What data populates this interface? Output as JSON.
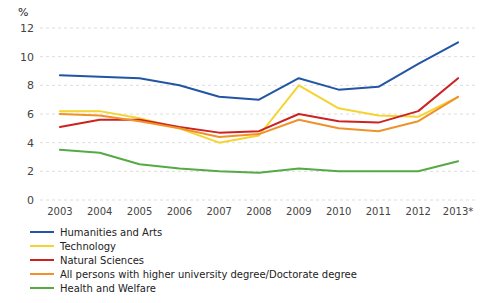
{
  "chart_data": {
    "type": "line",
    "y_label": "%",
    "categories": [
      "2003",
      "2004",
      "2005",
      "2006",
      "2007",
      "2008",
      "2009",
      "2010",
      "2011",
      "2012",
      "2013*"
    ],
    "series": [
      {
        "name": "Humanities and Arts",
        "color": "#2255a4",
        "values": [
          8.7,
          8.6,
          8.5,
          8.0,
          7.2,
          7.0,
          8.5,
          7.7,
          7.9,
          9.5,
          11.0
        ]
      },
      {
        "name": "Technology",
        "color": "#f5d330",
        "values": [
          6.2,
          6.2,
          5.7,
          5.0,
          4.0,
          4.5,
          8.0,
          6.4,
          5.9,
          5.8,
          7.2
        ]
      },
      {
        "name": "Natural Sciences",
        "color": "#cc2222",
        "values": [
          5.1,
          5.6,
          5.6,
          5.1,
          4.7,
          4.8,
          6.0,
          5.5,
          5.4,
          6.2,
          8.5
        ]
      },
      {
        "name": "All persons with higher university degree/Doctorate degree",
        "color": "#f0922b",
        "values": [
          6.0,
          5.9,
          5.5,
          5.0,
          4.4,
          4.6,
          5.6,
          5.0,
          4.8,
          5.5,
          7.2
        ]
      },
      {
        "name": "Health and Welfare",
        "color": "#55aa44",
        "values": [
          3.5,
          3.3,
          2.5,
          2.2,
          2.0,
          1.9,
          2.2,
          2.0,
          2.0,
          2.0,
          2.7
        ]
      }
    ],
    "ylim": [
      0,
      12
    ],
    "yticks": [
      0,
      2,
      4,
      6,
      8,
      10,
      12
    ],
    "grid": true,
    "legend": "bottom"
  }
}
